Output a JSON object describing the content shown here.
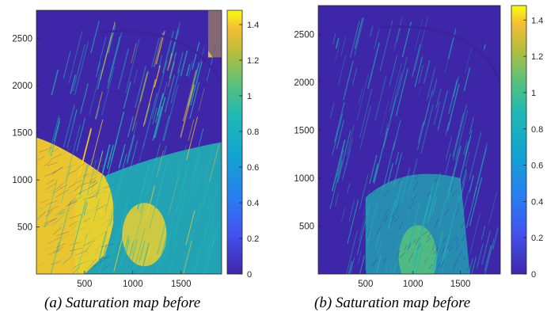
{
  "figures": [
    {
      "caption": "(a) Saturation map before"
    },
    {
      "caption": "(b)   Saturation map before"
    }
  ],
  "chart_data": [
    {
      "type": "heatmap",
      "title": "",
      "xlabel": "",
      "ylabel": "",
      "colormap": "parula",
      "x_ticks": [
        500,
        1000,
        1500
      ],
      "y_ticks": [
        500,
        1000,
        1500,
        2000,
        2500
      ],
      "xlim": [
        1,
        1920
      ],
      "ylim": [
        1,
        2800
      ],
      "colorbar": {
        "ticks": [
          0,
          0.2,
          0.4,
          0.6,
          0.8,
          1,
          1.2,
          1.4
        ],
        "range": [
          0,
          1.48
        ]
      },
      "colors": {
        "low": "#3e26a8",
        "mid": "#1fb8b5",
        "high": "#f9d325"
      }
    },
    {
      "type": "heatmap",
      "title": "",
      "xlabel": "",
      "ylabel": "",
      "colormap": "parula",
      "x_ticks": [
        500,
        1000,
        1500
      ],
      "y_ticks": [
        500,
        1000,
        1500,
        2000,
        2500
      ],
      "xlim": [
        1,
        1920
      ],
      "ylim": [
        1,
        2800
      ],
      "colorbar": {
        "ticks": [
          0,
          0.2,
          0.4,
          0.6,
          0.8,
          1,
          1.2,
          1.4
        ],
        "range": [
          0,
          1.48
        ]
      },
      "colors": {
        "low": "#3e26a8",
        "mid": "#1fb8b5",
        "high": "#f9d325"
      }
    }
  ]
}
